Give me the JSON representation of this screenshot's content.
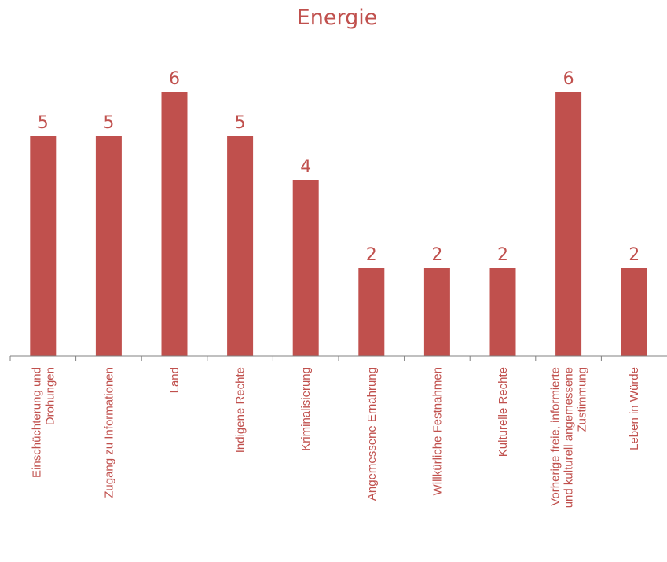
{
  "chart_data": {
    "type": "bar",
    "title": "Energie",
    "categories": [
      [
        "Einschüchterung und",
        "Drohungen"
      ],
      [
        "Zugang zu Informationen"
      ],
      [
        "Land"
      ],
      [
        "Indigene Rechte"
      ],
      [
        "Kriminalisierung"
      ],
      [
        "Angemessene Ernährung"
      ],
      [
        "Willkürliche Festnahmen"
      ],
      [
        "Kulturelle Rechte"
      ],
      [
        "Vorherige freie, informierte",
        "und kulturell angemessene",
        "Zustimmung"
      ],
      [
        "Leben in Würde"
      ]
    ],
    "values": [
      5,
      5,
      6,
      5,
      4,
      2,
      2,
      2,
      6,
      2
    ],
    "ylim": [
      0,
      6
    ],
    "grid": false,
    "legend": "none",
    "xlabel": "",
    "ylabel": "",
    "colors": {
      "bar": "#c0504d",
      "text": "#c0504d",
      "axis": "#808080"
    }
  }
}
